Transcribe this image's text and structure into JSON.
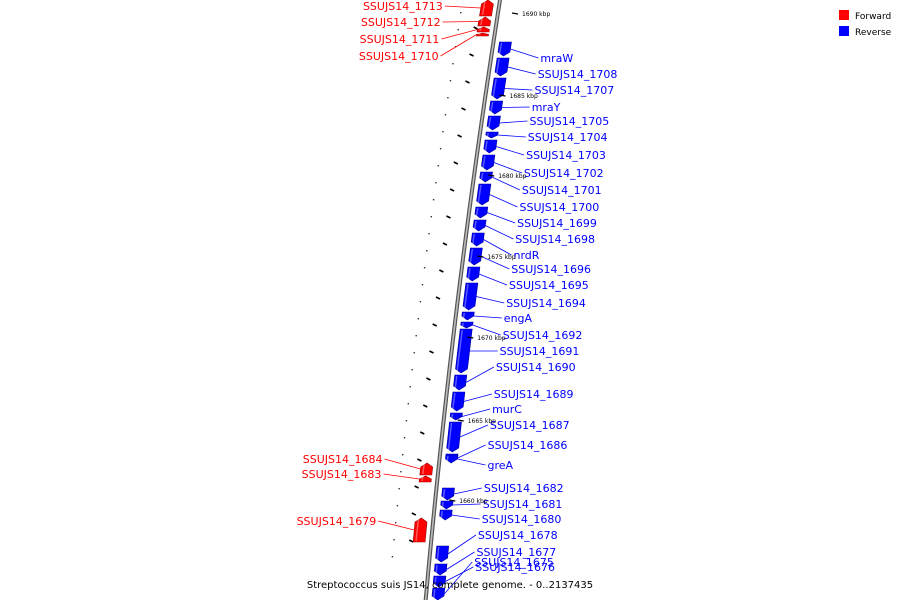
{
  "caption": "Streptococcus suis JS14, complete genome. - 0..2137435",
  "legend": {
    "forward": {
      "label": "Forward",
      "color": "#ff0000"
    },
    "reverse": {
      "label": "Reverse",
      "color": "#0000ff"
    }
  },
  "colors": {
    "forward": "#ff0000",
    "reverse": "#0000ff",
    "forward_dark": "#990000",
    "reverse_dark": "#000099",
    "backbone": "#888888"
  },
  "ticks": [
    {
      "label": "1690 kbp"
    },
    {
      "label": "1685 kbp"
    },
    {
      "label": "1680 kbp"
    },
    {
      "label": "1675 kbp"
    },
    {
      "label": "1670 kbp"
    },
    {
      "label": "1665 kbp"
    },
    {
      "label": "1660 kbp"
    }
  ],
  "genes": [
    {
      "name": "SSUJS14_1713",
      "strand": "forward"
    },
    {
      "name": "SSUJS14_1712",
      "strand": "forward"
    },
    {
      "name": "SSUJS14_1711",
      "strand": "forward"
    },
    {
      "name": "SSUJS14_1710",
      "strand": "forward"
    },
    {
      "name": "mraW",
      "strand": "reverse"
    },
    {
      "name": "SSUJS14_1708",
      "strand": "reverse"
    },
    {
      "name": "SSUJS14_1707",
      "strand": "reverse"
    },
    {
      "name": "mraY",
      "strand": "reverse"
    },
    {
      "name": "SSUJS14_1705",
      "strand": "reverse"
    },
    {
      "name": "SSUJS14_1704",
      "strand": "reverse"
    },
    {
      "name": "SSUJS14_1703",
      "strand": "reverse"
    },
    {
      "name": "SSUJS14_1702",
      "strand": "reverse"
    },
    {
      "name": "SSUJS14_1701",
      "strand": "reverse"
    },
    {
      "name": "SSUJS14_1700",
      "strand": "reverse"
    },
    {
      "name": "SSUJS14_1699",
      "strand": "reverse"
    },
    {
      "name": "SSUJS14_1698",
      "strand": "reverse"
    },
    {
      "name": "nrdR",
      "strand": "reverse"
    },
    {
      "name": "SSUJS14_1696",
      "strand": "reverse"
    },
    {
      "name": "SSUJS14_1695",
      "strand": "reverse"
    },
    {
      "name": "SSUJS14_1694",
      "strand": "reverse"
    },
    {
      "name": "engA",
      "strand": "reverse"
    },
    {
      "name": "SSUJS14_1692",
      "strand": "reverse"
    },
    {
      "name": "SSUJS14_1691",
      "strand": "reverse"
    },
    {
      "name": "SSUJS14_1690",
      "strand": "reverse"
    },
    {
      "name": "SSUJS14_1689",
      "strand": "reverse"
    },
    {
      "name": "murC",
      "strand": "reverse"
    },
    {
      "name": "SSUJS14_1687",
      "strand": "reverse"
    },
    {
      "name": "SSUJS14_1686",
      "strand": "reverse"
    },
    {
      "name": "SSUJS14_1684",
      "strand": "forward"
    },
    {
      "name": "greA",
      "strand": "reverse"
    },
    {
      "name": "SSUJS14_1683",
      "strand": "forward"
    },
    {
      "name": "SSUJS14_1682",
      "strand": "reverse"
    },
    {
      "name": "SSUJS14_1681",
      "strand": "reverse"
    },
    {
      "name": "SSUJS14_1680",
      "strand": "reverse"
    },
    {
      "name": "SSUJS14_1679",
      "strand": "forward"
    },
    {
      "name": "SSUJS14_1678",
      "strand": "reverse"
    },
    {
      "name": "SSUJS14_1677",
      "strand": "reverse"
    },
    {
      "name": "SSUJS14_1676",
      "strand": "reverse"
    },
    {
      "name": "SSUJS14_1675",
      "strand": "reverse"
    }
  ]
}
